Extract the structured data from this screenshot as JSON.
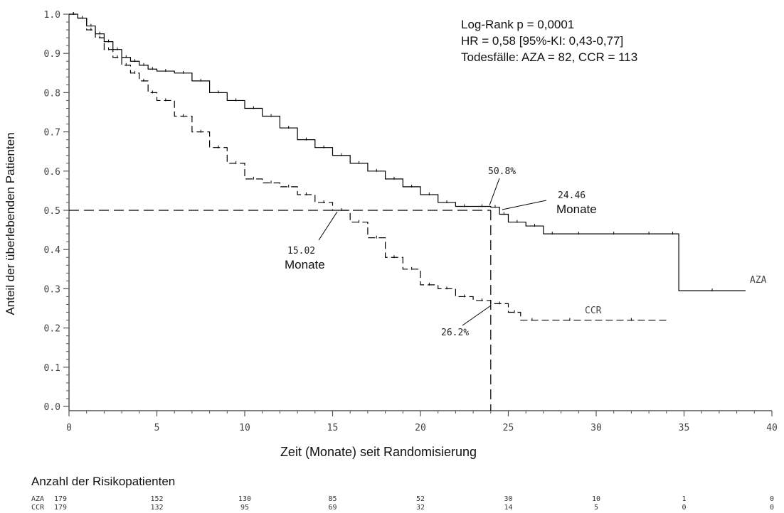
{
  "chart_data": {
    "type": "line",
    "title": "",
    "xlabel": "Zeit (Monate) seit Randomisierung",
    "ylabel": "Anteil der überlebenden Patienten",
    "xlim": [
      0,
      40
    ],
    "ylim": [
      0,
      1
    ],
    "x_ticks": [
      "0",
      "5",
      "10",
      "15",
      "20",
      "25",
      "30",
      "35",
      "40"
    ],
    "y_ticks": [
      "0.0",
      "0.1",
      "0.2",
      "0.3",
      "0.4",
      "0.5",
      "0.6",
      "0.7",
      "0.8",
      "0.9",
      "1.0"
    ],
    "grid": false,
    "stats_box": [
      "Log-Rank p = 0,0001",
      "HR = 0,58 [95%-KI: 0,43-0,77]",
      "Todesfälle: AZA = 82, CCR = 113"
    ],
    "series": [
      {
        "name": "AZA",
        "style": "solid",
        "step": true,
        "x": [
          0,
          0.5,
          1,
          1.5,
          2,
          2.5,
          3,
          3.5,
          4,
          4.5,
          5,
          6,
          7,
          8,
          9,
          10,
          11,
          12,
          13,
          14,
          15,
          16,
          17,
          18,
          19,
          20,
          21,
          22,
          23,
          24,
          24.5,
          25,
          26,
          27,
          28,
          30,
          32,
          34,
          34.7,
          38.5
        ],
        "y": [
          1.0,
          0.99,
          0.97,
          0.95,
          0.93,
          0.91,
          0.89,
          0.88,
          0.87,
          0.86,
          0.855,
          0.85,
          0.83,
          0.8,
          0.78,
          0.76,
          0.74,
          0.71,
          0.68,
          0.66,
          0.64,
          0.62,
          0.6,
          0.58,
          0.56,
          0.54,
          0.52,
          0.51,
          0.51,
          0.508,
          0.49,
          0.47,
          0.46,
          0.44,
          0.44,
          0.44,
          0.44,
          0.44,
          0.295,
          0.295
        ]
      },
      {
        "name": "CCR",
        "style": "dashed",
        "step": true,
        "x": [
          0,
          0.5,
          1,
          1.5,
          2,
          2.5,
          3,
          3.5,
          4,
          4.5,
          5,
          6,
          7,
          8,
          9,
          10,
          11,
          12,
          13,
          14,
          15,
          16,
          17,
          18,
          19,
          20,
          21,
          22,
          23,
          24,
          25,
          25.7,
          27,
          30,
          34
        ],
        "y": [
          1.0,
          0.99,
          0.96,
          0.94,
          0.91,
          0.89,
          0.87,
          0.85,
          0.83,
          0.8,
          0.78,
          0.74,
          0.7,
          0.66,
          0.62,
          0.58,
          0.57,
          0.56,
          0.54,
          0.52,
          0.5,
          0.47,
          0.43,
          0.38,
          0.35,
          0.31,
          0.3,
          0.28,
          0.27,
          0.262,
          0.24,
          0.22,
          0.22,
          0.22,
          0.22
        ]
      }
    ],
    "reference_lines": {
      "median_y": 0.5,
      "x_at_24": 24
    },
    "annotations": {
      "aza_median_value": "24.46",
      "aza_median_unit": "Monate",
      "ccr_median_value": "15.02",
      "ccr_median_unit": "Monate",
      "aza_24m_pct": "50.8%",
      "ccr_24m_pct": "26.2%",
      "aza_label": "AZA",
      "ccr_label": "CCR"
    },
    "risk_table": {
      "title": "Anzahl der Risikopatienten",
      "times": [
        0,
        5,
        10,
        15,
        20,
        25,
        30,
        35,
        40
      ],
      "rows": [
        {
          "name": "AZA",
          "values": [
            "179",
            "152",
            "130",
            "85",
            "52",
            "30",
            "10",
            "1",
            "0"
          ]
        },
        {
          "name": "CCR",
          "values": [
            "179",
            "132",
            "95",
            "69",
            "32",
            "14",
            "5",
            "0",
            "0"
          ]
        }
      ]
    },
    "colors": {
      "line": "#000000",
      "axis": "#555555",
      "text": "#111111"
    }
  }
}
